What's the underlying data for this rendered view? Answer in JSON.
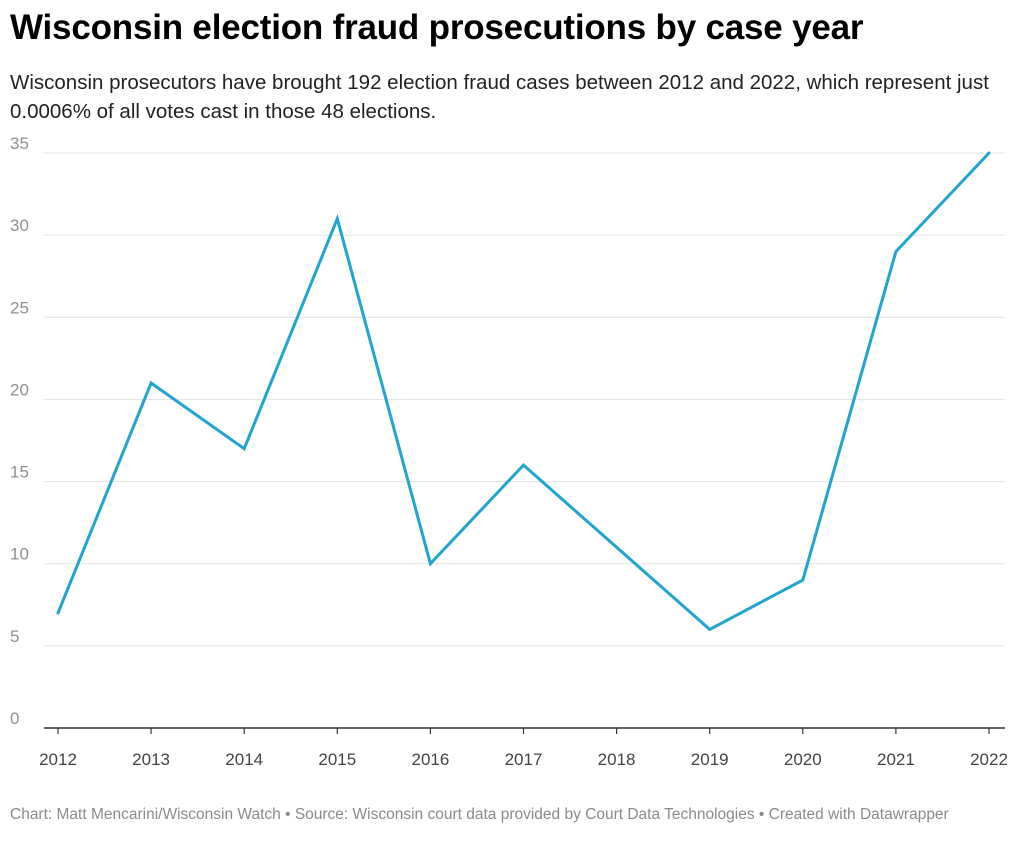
{
  "title": "Wisconsin election fraud prosecutions by case year",
  "subtitle": "Wisconsin prosecutors have brought 192 election fraud cases between 2012 and 2022, which represent just 0.0006% of all votes cast in those 48 elections.",
  "footer": {
    "credit": "Chart: Matt Mencarini/Wisconsin Watch",
    "separator": " • ",
    "source": "Source: Wisconsin court data provided by Court Data Technologies",
    "created": "Created with Datawrapper"
  },
  "colors": {
    "line": "#21A4CF",
    "grid": "#e2e2e2",
    "axis": "#333333",
    "tick_text": "#8f8f8f",
    "x_tick_text": "#444444"
  },
  "chart_data": {
    "type": "line",
    "x": [
      "2012",
      "2013",
      "2014",
      "2015",
      "2016",
      "2017",
      "2018",
      "2019",
      "2020",
      "2021",
      "2022"
    ],
    "series": [
      {
        "values": [
          7,
          21,
          17,
          31,
          10,
          16,
          11,
          6,
          9,
          29,
          35
        ]
      }
    ],
    "ylim": [
      0,
      35
    ],
    "yticks": [
      0,
      5,
      10,
      15,
      20,
      25,
      30,
      35
    ],
    "grid": true
  }
}
